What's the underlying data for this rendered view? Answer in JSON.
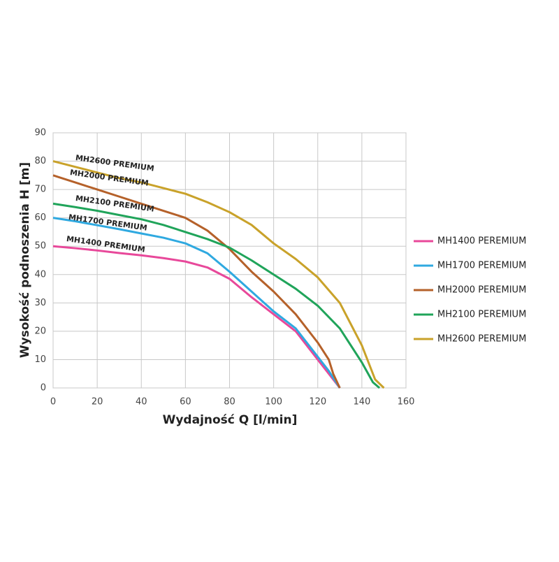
{
  "chart_data": {
    "type": "line",
    "xlabel": "Wydajność Q [l/min]",
    "ylabel": "Wysokość podnoszenia H [m]",
    "xlim": [
      0,
      160
    ],
    "xticks": [
      0,
      20,
      40,
      60,
      80,
      100,
      120,
      140,
      160
    ],
    "ylim": [
      0,
      90
    ],
    "yticks": [
      0,
      10,
      20,
      30,
      40,
      50,
      60,
      70,
      80,
      90
    ],
    "grid": true,
    "legend": "right",
    "annotations": [
      "MH2600 PREMIUM",
      "MH2000 PREMIUM",
      "MH2100 PREMIUM",
      "MH1700 PREMIUM",
      "MH1400 PREMIUM"
    ],
    "series": [
      {
        "name": "MH1400 PEREMIUM",
        "color": "#e8489a",
        "x": [
          0,
          10,
          20,
          30,
          40,
          50,
          60,
          70,
          80,
          90,
          100,
          110,
          120,
          130
        ],
        "values": [
          50,
          49.3,
          48.5,
          47.6,
          46.8,
          45.8,
          44.6,
          42.5,
          38.5,
          32,
          26,
          20,
          10,
          0
        ]
      },
      {
        "name": "MH1700 PEREMIUM",
        "color": "#2fa9e0",
        "x": [
          0,
          10,
          20,
          30,
          40,
          50,
          60,
          70,
          80,
          90,
          100,
          110,
          120,
          125,
          130
        ],
        "values": [
          60,
          58.8,
          57.4,
          56,
          54.5,
          53,
          51,
          47.5,
          41,
          34,
          27,
          21,
          11,
          6,
          0
        ]
      },
      {
        "name": "MH2000 PEREMIUM",
        "color": "#b5612a",
        "x": [
          0,
          10,
          20,
          30,
          40,
          50,
          60,
          70,
          80,
          90,
          100,
          110,
          120,
          125,
          127,
          130
        ],
        "values": [
          75,
          72.5,
          70,
          67.5,
          65,
          62.5,
          60,
          55.5,
          49,
          41,
          34,
          26,
          16,
          10,
          5,
          0
        ]
      },
      {
        "name": "MH2100 PEREMIUM",
        "color": "#20a45a",
        "x": [
          0,
          10,
          20,
          30,
          40,
          50,
          60,
          70,
          80,
          90,
          100,
          110,
          120,
          130,
          140,
          145,
          148
        ],
        "values": [
          65,
          63.8,
          62.5,
          61,
          59.5,
          57.5,
          55,
          52.5,
          49.5,
          45,
          40,
          35,
          29,
          21,
          9,
          2,
          0
        ]
      },
      {
        "name": "MH2600 PEREMIUM",
        "color": "#c9a22a",
        "x": [
          0,
          10,
          20,
          30,
          40,
          50,
          60,
          70,
          80,
          90,
          100,
          110,
          120,
          130,
          140,
          146,
          150
        ],
        "values": [
          80,
          78,
          76,
          74,
          72.5,
          70.5,
          68.5,
          65.5,
          62,
          57.5,
          51,
          45.5,
          39,
          30,
          15,
          3,
          0
        ]
      }
    ]
  }
}
